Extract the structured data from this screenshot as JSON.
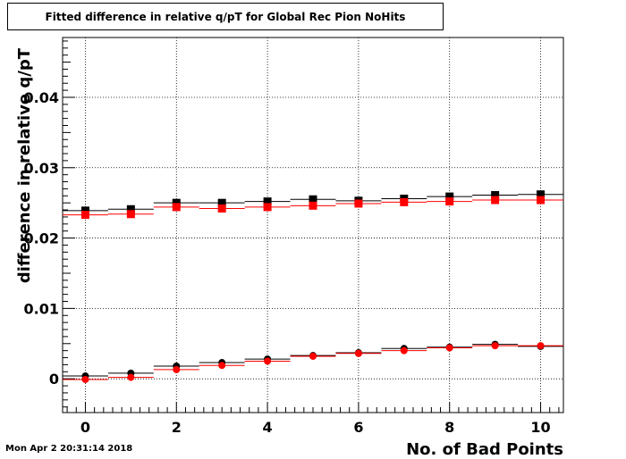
{
  "title": "Fitted difference in relative q/pT for Global Rec Pion NoHits",
  "timestamp": "Mon Apr  2 20:31:14 2018",
  "chart_data": {
    "type": "scatter",
    "title": "Fitted difference in relative q/pT for Global Rec Pion NoHits",
    "xlabel": "No. of Bad Points",
    "ylabel": "difference in relative q/pT",
    "xlim": [
      -0.5,
      10.5
    ],
    "ylim": [
      -0.0048,
      0.0485
    ],
    "x_ticks": [
      0,
      2,
      4,
      6,
      8,
      10
    ],
    "x_tick_labels": [
      "0",
      "2",
      "4",
      "6",
      "8",
      "10"
    ],
    "y_ticks": [
      0,
      0.01,
      0.02,
      0.03,
      0.04
    ],
    "y_tick_labels": [
      "0",
      "0.01",
      "0.02",
      "0.03",
      "0.04"
    ],
    "grid": true,
    "legend": "none",
    "x": [
      0,
      1,
      2,
      3,
      4,
      5,
      6,
      7,
      8,
      9,
      10
    ],
    "series": [
      {
        "marker": "square",
        "color": "#000000",
        "values": [
          0.0239,
          0.0241,
          0.025,
          0.025,
          0.0252,
          0.0255,
          0.0253,
          0.0256,
          0.0259,
          0.0261,
          0.0262
        ]
      },
      {
        "marker": "square",
        "color": "#ff0000",
        "values": [
          0.0233,
          0.0234,
          0.0244,
          0.0242,
          0.0244,
          0.0246,
          0.0249,
          0.0251,
          0.0252,
          0.0254,
          0.0254
        ]
      },
      {
        "marker": "circle",
        "color": "#000000",
        "values": [
          0.0004,
          0.0008,
          0.0018,
          0.0023,
          0.0028,
          0.0033,
          0.0037,
          0.0043,
          0.0045,
          0.0049,
          0.0046
        ]
      },
      {
        "marker": "circle",
        "color": "#ff0000",
        "values": [
          -0.0001,
          0.0002,
          0.0013,
          0.0019,
          0.0025,
          0.0032,
          0.0036,
          0.004,
          0.0044,
          0.0047,
          0.0047
        ]
      }
    ]
  }
}
